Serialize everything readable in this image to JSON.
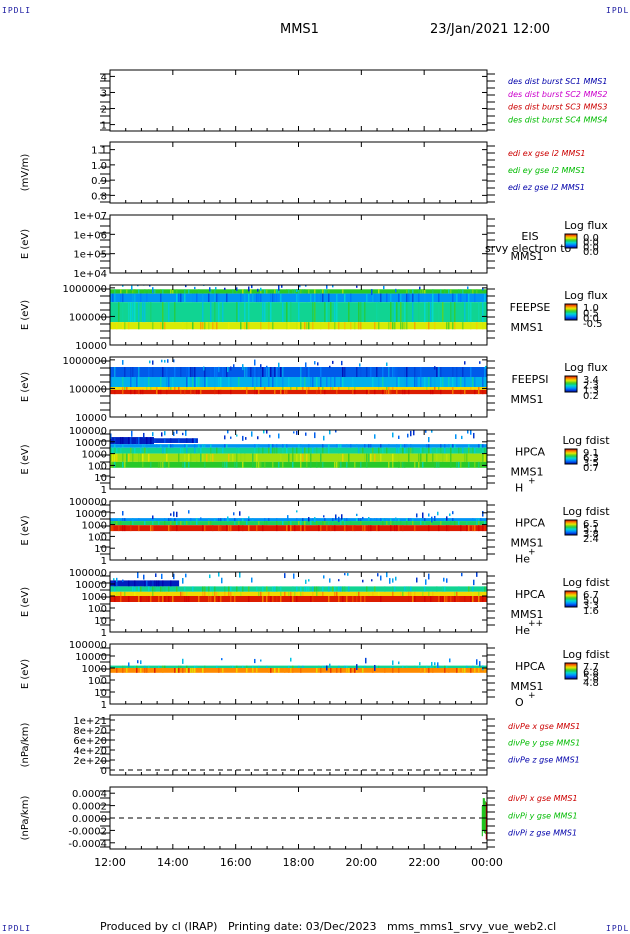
{
  "header": {
    "corner_label": "IPDLI",
    "title": "MMS1",
    "datetime": "23/Jan/2021 12:00"
  },
  "footer": {
    "produced_by": "Produced by cl (IRAP)",
    "printing_date": "Printing date: 03/Dec/2023",
    "filename": "mms_mms1_srvy_vue_web2.cl"
  },
  "chart_data": {
    "type": "multi-panel",
    "x_ticks": [
      "12:00",
      "14:00",
      "16:00",
      "18:00",
      "20:00",
      "22:00",
      "00:00"
    ],
    "xlim_hours": [
      12,
      24
    ],
    "panels": [
      {
        "id": "des-dist-burst",
        "type": "line",
        "ylabel": "",
        "yticks": [
          "4",
          "3",
          "2",
          "1"
        ],
        "ylim": [
          0.6,
          4.4
        ],
        "legend": [
          {
            "label": "des dist burst SC1 MMS1",
            "color": "#0000aa"
          },
          {
            "label": "des dist burst SC2 MMS2",
            "color": "#cc00cc"
          },
          {
            "label": "des dist burst SC3 MMS3",
            "color": "#cc0000"
          },
          {
            "label": "des dist burst SC4 MMS4",
            "color": "#00bb00"
          }
        ]
      },
      {
        "id": "edi-e-gse",
        "type": "line",
        "ylabel": "(mV/m)",
        "yticks": [
          "1.1",
          "1.0",
          "0.9",
          "0.8"
        ],
        "ylim": [
          0.75,
          1.15
        ],
        "legend": [
          {
            "label": "edi ex gse l2 MMS1",
            "color": "#cc0000"
          },
          {
            "label": "edi ey gse l2 MMS1",
            "color": "#00bb00"
          },
          {
            "label": "edi ez gse l2 MMS1",
            "color": "#0000aa"
          }
        ]
      },
      {
        "id": "eis",
        "type": "heatmap",
        "ylabel": "E (eV)",
        "yticks": [
          "1e+07",
          "1e+06",
          "1e+05",
          "1e+04"
        ],
        "ylog": [
          4,
          7
        ],
        "instrument": [
          "EIS",
          "MMS1"
        ],
        "annotation": "srvy electron to",
        "colorbar": {
          "title": "Log flux",
          "ticks": [
            "0.0",
            "0.0",
            "0.0",
            "0.0"
          ]
        },
        "data": []
      },
      {
        "id": "feeps-electron",
        "type": "heatmap",
        "ylabel": "E (eV)",
        "yticks": [
          "1000000",
          "100000",
          "10000"
        ],
        "ylog": [
          4,
          6.1
        ],
        "instrument": [
          "FEEPSE",
          "MMS1"
        ],
        "colorbar": {
          "title": "Log flux",
          "ticks": [
            "1.0",
            "0.5",
            "0.0",
            "-0.5"
          ]
        },
        "bands": [
          {
            "from": 12.0,
            "to": 24.0,
            "ymin": 5.8,
            "ymax": 5.95,
            "level": 0.55
          },
          {
            "from": 12.0,
            "to": 24.0,
            "ymin": 5.5,
            "ymax": 5.8,
            "level": 0.25
          },
          {
            "from": 12.0,
            "to": 24.0,
            "ymin": 4.8,
            "ymax": 5.5,
            "level": 0.45
          },
          {
            "from": 12.0,
            "to": 24.0,
            "ymin": 4.55,
            "ymax": 4.8,
            "level": 0.7
          }
        ]
      },
      {
        "id": "feeps-ion",
        "type": "heatmap",
        "ylabel": "E (eV)",
        "yticks": [
          "1000000",
          "100000",
          "10000"
        ],
        "ylog": [
          4,
          6.1
        ],
        "instrument": [
          "FEEPSI",
          "MMS1"
        ],
        "colorbar": {
          "title": "Log flux",
          "ticks": [
            "3.4",
            "2.3",
            "1.3",
            "0.2"
          ]
        },
        "bands": [
          {
            "from": 12.0,
            "to": 24.0,
            "ymin": 5.4,
            "ymax": 5.75,
            "level": 0.15
          },
          {
            "from": 12.0,
            "to": 24.0,
            "ymin": 5.05,
            "ymax": 5.4,
            "level": 0.3
          },
          {
            "from": 12.0,
            "to": 24.0,
            "ymin": 4.95,
            "ymax": 5.05,
            "level": 0.75
          },
          {
            "from": 12.0,
            "to": 24.0,
            "ymin": 4.8,
            "ymax": 4.95,
            "level": 0.97
          }
        ]
      },
      {
        "id": "hpca-hplus",
        "type": "heatmap",
        "ylabel": "E (eV)",
        "yticks": [
          "100000",
          "10000",
          "1000",
          "100",
          "10",
          "1"
        ],
        "ylog": [
          0,
          5
        ],
        "instrument": [
          "HPCA",
          "MMS1"
        ],
        "species": "H",
        "charge": "+",
        "colorbar": {
          "title": "Log fdist",
          "ticks": [
            "9.1",
            "6.3",
            "3.5",
            "0.7"
          ]
        },
        "bands": [
          {
            "from": 12.0,
            "to": 13.4,
            "ymin": 3.8,
            "ymax": 4.4,
            "level": 0.05
          },
          {
            "from": 13.4,
            "to": 14.8,
            "ymin": 3.9,
            "ymax": 4.3,
            "level": 0.08
          },
          {
            "from": 12.0,
            "to": 24.0,
            "ymin": 3.5,
            "ymax": 3.8,
            "level": 0.25
          },
          {
            "from": 12.0,
            "to": 24.0,
            "ymin": 3.0,
            "ymax": 3.5,
            "level": 0.45
          },
          {
            "from": 12.0,
            "to": 24.0,
            "ymin": 2.3,
            "ymax": 3.0,
            "level": 0.65
          },
          {
            "from": 12.0,
            "to": 24.0,
            "ymin": 1.8,
            "ymax": 2.3,
            "level": 0.55
          }
        ]
      },
      {
        "id": "hpca-heplus",
        "type": "heatmap",
        "ylabel": "E (eV)",
        "yticks": [
          "100000",
          "10000",
          "1000",
          "100",
          "10",
          "1"
        ],
        "ylog": [
          0,
          5
        ],
        "instrument": [
          "HPCA",
          "MMS1"
        ],
        "species": "He",
        "charge": "+",
        "colorbar": {
          "title": "Log fdist",
          "ticks": [
            "6.5",
            "5.1",
            "3.8",
            "2.4"
          ]
        },
        "bands": [
          {
            "from": 12.0,
            "to": 24.0,
            "ymin": 3.3,
            "ymax": 3.55,
            "level": 0.25
          },
          {
            "from": 12.0,
            "to": 24.0,
            "ymin": 2.95,
            "ymax": 3.3,
            "level": 0.5
          },
          {
            "from": 12.0,
            "to": 24.0,
            "ymin": 2.45,
            "ymax": 2.95,
            "level": 0.97
          }
        ]
      },
      {
        "id": "hpca-heplusplus",
        "type": "heatmap",
        "ylabel": "E (eV)",
        "yticks": [
          "100000",
          "10000",
          "1000",
          "100",
          "10",
          "1"
        ],
        "ylog": [
          0,
          5
        ],
        "instrument": [
          "HPCA",
          "MMS1"
        ],
        "species": "He",
        "charge": "++",
        "colorbar": {
          "title": "Log fdist",
          "ticks": [
            "6.7",
            "5.0",
            "3.3",
            "1.6"
          ]
        },
        "bands": [
          {
            "from": 12.0,
            "to": 14.2,
            "ymin": 3.8,
            "ymax": 4.3,
            "level": 0.05
          },
          {
            "from": 12.0,
            "to": 24.0,
            "ymin": 3.35,
            "ymax": 3.8,
            "level": 0.45
          },
          {
            "from": 12.0,
            "to": 24.0,
            "ymin": 3.0,
            "ymax": 3.35,
            "level": 0.75
          },
          {
            "from": 12.0,
            "to": 24.0,
            "ymin": 2.5,
            "ymax": 3.0,
            "level": 0.97
          }
        ]
      },
      {
        "id": "hpca-oplus",
        "type": "heatmap",
        "ylabel": "E (eV)",
        "yticks": [
          "100000",
          "10000",
          "1000",
          "100",
          "10",
          "1"
        ],
        "ylog": [
          0,
          5
        ],
        "instrument": [
          "HPCA",
          "MMS1"
        ],
        "species": "O",
        "charge": "+",
        "colorbar": {
          "title": "Log fdist",
          "ticks": [
            "7.7",
            "6.8",
            "5.8",
            "4.8"
          ]
        },
        "bands": [
          {
            "from": 12.0,
            "to": 24.0,
            "ymin": 3.0,
            "ymax": 3.2,
            "level": 0.45
          },
          {
            "from": 12.0,
            "to": 24.0,
            "ymin": 2.6,
            "ymax": 3.0,
            "level": 0.85
          }
        ]
      },
      {
        "id": "divpe",
        "type": "line",
        "ylabel": "(nPa/km)",
        "yticks": [
          "1e+21",
          "8e+20",
          "6e+20",
          "4e+20",
          "2e+20",
          "0"
        ],
        "ylim": [
          -1e+20,
          1.1e+21
        ],
        "zero_line": true,
        "legend": [
          {
            "label": "divPe x gse MMS1",
            "color": "#cc0000"
          },
          {
            "label": "divPe y gse MMS1",
            "color": "#00bb00"
          },
          {
            "label": "divPe z gse MMS1",
            "color": "#0000aa"
          }
        ]
      },
      {
        "id": "divpi",
        "type": "line",
        "ylabel": "(nPa/km)",
        "yticks": [
          "0.0004",
          "0.0002",
          "0.0000",
          "-0.0002",
          "-0.0004"
        ],
        "ylim": [
          -0.0005,
          0.0005
        ],
        "zero_line": true,
        "burst": {
          "from": 23.85,
          "to": 24.0,
          "min": -0.00042,
          "max": 0.00038
        },
        "legend": [
          {
            "label": "divPi x gse MMS1",
            "color": "#cc0000"
          },
          {
            "label": "divPi y gse MMS1",
            "color": "#00bb00"
          },
          {
            "label": "divPi z gse MMS1",
            "color": "#0000aa"
          }
        ]
      }
    ]
  }
}
